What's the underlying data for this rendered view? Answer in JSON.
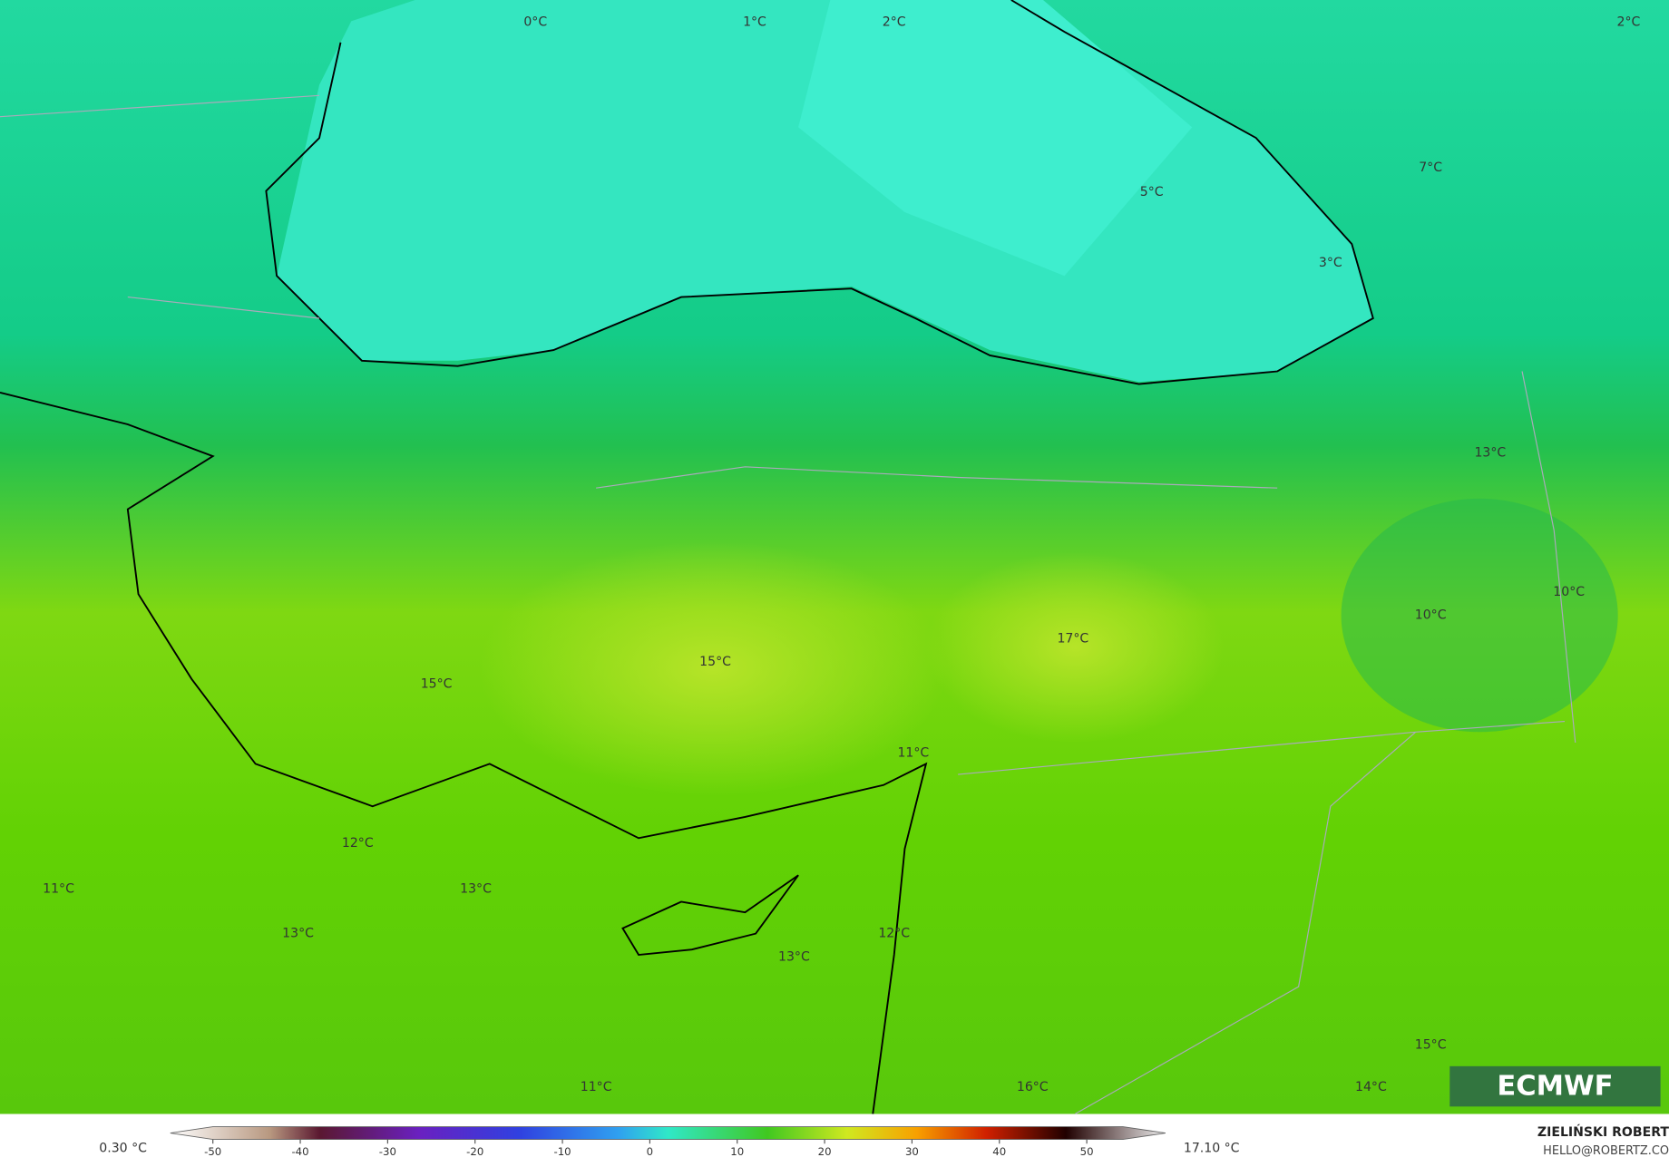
{
  "map": {
    "labels": [
      "0°C",
      "1°C",
      "2°C",
      "2°C",
      "5°C",
      "7°C",
      "3°C",
      "13°C",
      "10°C",
      "10°C",
      "17°C",
      "15°C",
      "15°C",
      "11°C",
      "12°C",
      "13°C",
      "11°C",
      "13°C",
      "12°C",
      "13°C",
      "15°C",
      "16°C",
      "14°C",
      "11°C"
    ]
  },
  "legend": {
    "min_label": "0.30 °C",
    "max_label": "17.10 °C",
    "ticks": [
      -50,
      -40,
      -30,
      -20,
      -10,
      0,
      10,
      20,
      30,
      40,
      50
    ]
  },
  "credits": {
    "logo": "ECMWF",
    "author": "ZIELIŃSKI ROBERT",
    "contact": "HELLO@ROBERTZ.CO"
  }
}
